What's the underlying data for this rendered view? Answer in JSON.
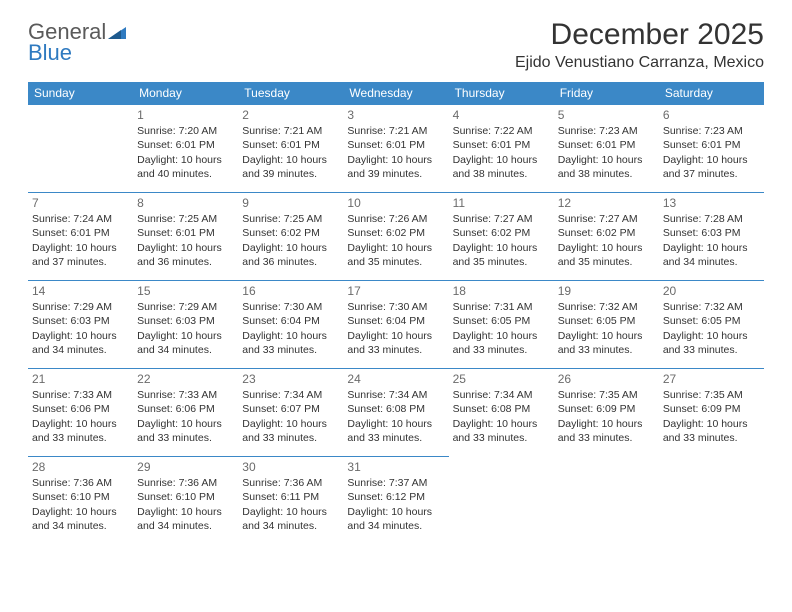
{
  "logo": {
    "word1": "General",
    "word2": "Blue"
  },
  "title": "December 2025",
  "location": "Ejido Venustiano Carranza, Mexico",
  "colors": {
    "header_bg": "#3b88c7",
    "header_text": "#ffffff",
    "border": "#3b88c7",
    "daynum": "#6b6b6b",
    "text": "#333333",
    "logo_gray": "#5a5a5a",
    "logo_blue": "#2f7ac0"
  },
  "layout": {
    "columns": 7,
    "rows": 5,
    "start_weekday": 1
  },
  "weekdays": [
    "Sunday",
    "Monday",
    "Tuesday",
    "Wednesday",
    "Thursday",
    "Friday",
    "Saturday"
  ],
  "days": [
    {
      "n": 1,
      "sr": "7:20 AM",
      "ss": "6:01 PM",
      "dl": "10 hours and 40 minutes."
    },
    {
      "n": 2,
      "sr": "7:21 AM",
      "ss": "6:01 PM",
      "dl": "10 hours and 39 minutes."
    },
    {
      "n": 3,
      "sr": "7:21 AM",
      "ss": "6:01 PM",
      "dl": "10 hours and 39 minutes."
    },
    {
      "n": 4,
      "sr": "7:22 AM",
      "ss": "6:01 PM",
      "dl": "10 hours and 38 minutes."
    },
    {
      "n": 5,
      "sr": "7:23 AM",
      "ss": "6:01 PM",
      "dl": "10 hours and 38 minutes."
    },
    {
      "n": 6,
      "sr": "7:23 AM",
      "ss": "6:01 PM",
      "dl": "10 hours and 37 minutes."
    },
    {
      "n": 7,
      "sr": "7:24 AM",
      "ss": "6:01 PM",
      "dl": "10 hours and 37 minutes."
    },
    {
      "n": 8,
      "sr": "7:25 AM",
      "ss": "6:01 PM",
      "dl": "10 hours and 36 minutes."
    },
    {
      "n": 9,
      "sr": "7:25 AM",
      "ss": "6:02 PM",
      "dl": "10 hours and 36 minutes."
    },
    {
      "n": 10,
      "sr": "7:26 AM",
      "ss": "6:02 PM",
      "dl": "10 hours and 35 minutes."
    },
    {
      "n": 11,
      "sr": "7:27 AM",
      "ss": "6:02 PM",
      "dl": "10 hours and 35 minutes."
    },
    {
      "n": 12,
      "sr": "7:27 AM",
      "ss": "6:02 PM",
      "dl": "10 hours and 35 minutes."
    },
    {
      "n": 13,
      "sr": "7:28 AM",
      "ss": "6:03 PM",
      "dl": "10 hours and 34 minutes."
    },
    {
      "n": 14,
      "sr": "7:29 AM",
      "ss": "6:03 PM",
      "dl": "10 hours and 34 minutes."
    },
    {
      "n": 15,
      "sr": "7:29 AM",
      "ss": "6:03 PM",
      "dl": "10 hours and 34 minutes."
    },
    {
      "n": 16,
      "sr": "7:30 AM",
      "ss": "6:04 PM",
      "dl": "10 hours and 33 minutes."
    },
    {
      "n": 17,
      "sr": "7:30 AM",
      "ss": "6:04 PM",
      "dl": "10 hours and 33 minutes."
    },
    {
      "n": 18,
      "sr": "7:31 AM",
      "ss": "6:05 PM",
      "dl": "10 hours and 33 minutes."
    },
    {
      "n": 19,
      "sr": "7:32 AM",
      "ss": "6:05 PM",
      "dl": "10 hours and 33 minutes."
    },
    {
      "n": 20,
      "sr": "7:32 AM",
      "ss": "6:05 PM",
      "dl": "10 hours and 33 minutes."
    },
    {
      "n": 21,
      "sr": "7:33 AM",
      "ss": "6:06 PM",
      "dl": "10 hours and 33 minutes."
    },
    {
      "n": 22,
      "sr": "7:33 AM",
      "ss": "6:06 PM",
      "dl": "10 hours and 33 minutes."
    },
    {
      "n": 23,
      "sr": "7:34 AM",
      "ss": "6:07 PM",
      "dl": "10 hours and 33 minutes."
    },
    {
      "n": 24,
      "sr": "7:34 AM",
      "ss": "6:08 PM",
      "dl": "10 hours and 33 minutes."
    },
    {
      "n": 25,
      "sr": "7:34 AM",
      "ss": "6:08 PM",
      "dl": "10 hours and 33 minutes."
    },
    {
      "n": 26,
      "sr": "7:35 AM",
      "ss": "6:09 PM",
      "dl": "10 hours and 33 minutes."
    },
    {
      "n": 27,
      "sr": "7:35 AM",
      "ss": "6:09 PM",
      "dl": "10 hours and 33 minutes."
    },
    {
      "n": 28,
      "sr": "7:36 AM",
      "ss": "6:10 PM",
      "dl": "10 hours and 34 minutes."
    },
    {
      "n": 29,
      "sr": "7:36 AM",
      "ss": "6:10 PM",
      "dl": "10 hours and 34 minutes."
    },
    {
      "n": 30,
      "sr": "7:36 AM",
      "ss": "6:11 PM",
      "dl": "10 hours and 34 minutes."
    },
    {
      "n": 31,
      "sr": "7:37 AM",
      "ss": "6:12 PM",
      "dl": "10 hours and 34 minutes."
    }
  ],
  "labels": {
    "sunrise": "Sunrise:",
    "sunset": "Sunset:",
    "daylight": "Daylight:"
  }
}
